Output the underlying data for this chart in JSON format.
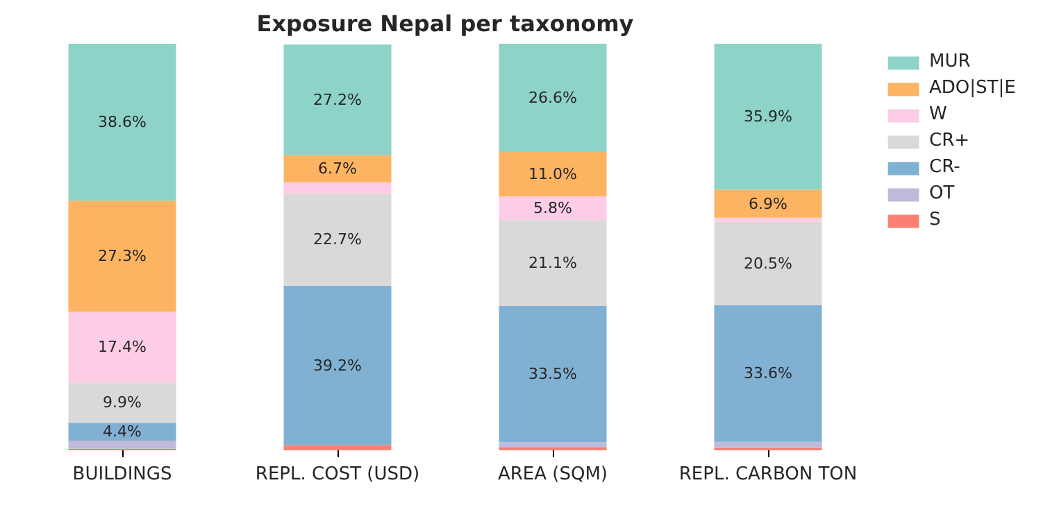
{
  "chart_data": {
    "type": "bar",
    "title": "Exposure Nepal per taxonomy",
    "stacked": true,
    "legend": "top right",
    "grid": false,
    "categories": [
      "BUILDINGS",
      "REPL. COST (USD)",
      "AREA (SQM)",
      "REPL. CARBON TON"
    ],
    "series": [
      {
        "name": "S",
        "color": "#fb8072",
        "values": [
          0.4,
          1.3,
          0.7,
          0.6
        ],
        "value_labels": [
          null,
          null,
          null,
          null
        ]
      },
      {
        "name": "OT",
        "color": "#bebada",
        "values": [
          2.0,
          null,
          1.3,
          1.5
        ],
        "value_labels": [
          null,
          null,
          null,
          null
        ]
      },
      {
        "name": "CR-",
        "color": "#80b1d3",
        "values": [
          4.4,
          39.2,
          33.5,
          33.6
        ],
        "value_labels": [
          "4.4%",
          "39.2%",
          "33.5%",
          "33.6%"
        ]
      },
      {
        "name": "CR+",
        "color": "#d9d9d9",
        "values": [
          9.9,
          22.7,
          21.1,
          20.5
        ],
        "value_labels": [
          "9.9%",
          "22.7%",
          "21.1%",
          "20.5%"
        ]
      },
      {
        "name": "W",
        "color": "#fccde5",
        "values": [
          17.4,
          2.7,
          5.8,
          1.0
        ],
        "value_labels": [
          "17.4%",
          null,
          "5.8%",
          null
        ]
      },
      {
        "name": "ADO|ST|E",
        "color": "#fdb462",
        "values": [
          27.3,
          6.7,
          11.0,
          6.9
        ],
        "value_labels": [
          "27.3%",
          "6.7%",
          "11.0%",
          "6.9%"
        ]
      },
      {
        "name": "MUR",
        "color": "#8dd3c7",
        "values": [
          38.6,
          27.2,
          26.6,
          35.9
        ],
        "value_labels": [
          "38.6%",
          "27.2%",
          "26.6%",
          "35.9%"
        ]
      }
    ]
  }
}
